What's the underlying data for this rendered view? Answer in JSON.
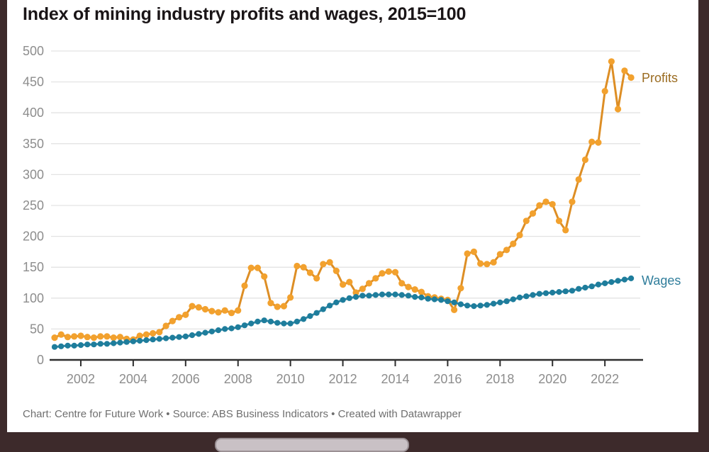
{
  "header": {
    "title": "Index of mining industry profits and wages, 2015=100"
  },
  "footer": {
    "text": "Chart: Centre for Future Work  • Source: ABS Business Indicators • Created with Datawrapper"
  },
  "frame": {
    "bg_color": "#3D2A2B",
    "card_color": "#FFFFFF",
    "pill_color": "#C9C1C5"
  },
  "chart_data": {
    "type": "line",
    "title": "Index of mining industry profits and wages, 2015=100",
    "x_unit": "quarter",
    "x_start": "2001 Q1",
    "x_end": "2023 Q1",
    "x_tick_years": [
      2002,
      2004,
      2006,
      2008,
      2010,
      2012,
      2014,
      2016,
      2018,
      2020,
      2022
    ],
    "y_ticks": [
      0,
      50,
      100,
      150,
      200,
      250,
      300,
      350,
      400,
      450,
      500
    ],
    "ylim": [
      0,
      500
    ],
    "grid": true,
    "legend_position": "line-end-right",
    "colors": {
      "grid": "#E3E3E3",
      "axis": "#2E2E2E",
      "tick_text": "#8D8D8D"
    },
    "series": [
      {
        "name": "Profits",
        "color": "#F2A12E",
        "line_color": "#DD8E25",
        "label_color": "#9A6B20",
        "values": [
          36,
          41,
          37,
          38,
          39,
          37,
          36,
          38,
          38,
          36,
          37,
          34,
          33,
          39,
          41,
          43,
          45,
          55,
          63,
          69,
          73,
          87,
          85,
          82,
          79,
          77,
          80,
          76,
          80,
          120,
          149,
          149,
          135,
          92,
          86,
          87,
          101,
          152,
          150,
          141,
          132,
          155,
          158,
          144,
          122,
          126,
          109,
          115,
          124,
          132,
          140,
          143,
          142,
          124,
          118,
          114,
          110,
          103,
          101,
          99,
          97,
          81,
          116,
          172,
          175,
          156,
          155,
          158,
          171,
          178,
          188,
          202,
          225,
          237,
          250,
          256,
          252,
          225,
          210,
          256,
          292,
          324,
          353,
          352,
          435,
          483,
          406,
          468,
          457
        ]
      },
      {
        "name": "Wages",
        "color": "#1E7D9C",
        "line_color": "#2F87A5",
        "label_color": "#2F7D9B",
        "values": [
          21,
          22,
          23,
          23,
          24,
          25,
          25,
          26,
          26,
          27,
          28,
          29,
          30,
          31,
          32,
          33,
          34,
          35,
          36,
          37,
          38,
          40,
          42,
          44,
          46,
          48,
          50,
          51,
          53,
          56,
          59,
          62,
          64,
          62,
          60,
          59,
          59,
          62,
          66,
          71,
          76,
          82,
          88,
          93,
          97,
          100,
          102,
          104,
          104,
          105,
          106,
          106,
          106,
          105,
          104,
          102,
          101,
          99,
          98,
          97,
          95,
          93,
          90,
          88,
          87,
          88,
          89,
          91,
          93,
          95,
          98,
          101,
          103,
          105,
          107,
          108,
          109,
          110,
          111,
          112,
          115,
          117,
          119,
          122,
          124,
          126,
          128,
          130,
          132
        ]
      }
    ]
  }
}
